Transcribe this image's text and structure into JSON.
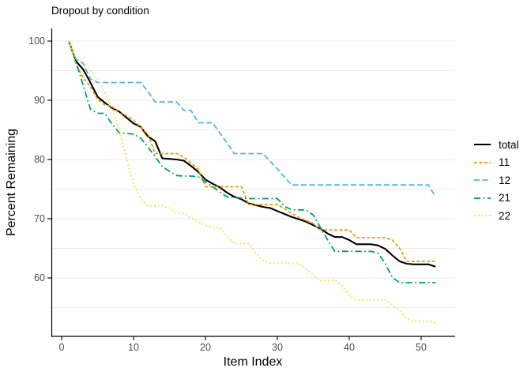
{
  "title": "Dropout by condition",
  "axes": {
    "x": {
      "label": "Item Index",
      "ticks": [
        0,
        10,
        20,
        30,
        40,
        50
      ]
    },
    "y": {
      "label": "Percent Remaining",
      "ticks": [
        60,
        70,
        80,
        90,
        100
      ]
    }
  },
  "colors": {
    "background": "#ffffff",
    "grid": "#ebebeb",
    "axis_line": "#000000",
    "tick_label": "#4d4d4d",
    "series_total": "#000000",
    "series_11": "#E69F00",
    "series_12": "#56B4E9",
    "series_21": "#009E73",
    "series_22": "#F0E442"
  },
  "chart_data": {
    "type": "line",
    "title": "Dropout by condition",
    "xlabel": "Item Index",
    "ylabel": "Percent Remaining",
    "xlim": [
      -1.4,
      54.7
    ],
    "ylim": [
      50.1,
      102.5
    ],
    "grid": "horizontal-only",
    "gridlines_y": [
      55,
      60,
      65,
      70,
      75,
      80,
      85,
      90,
      95,
      100
    ],
    "legend_position": "right",
    "x_start": 1,
    "x_end": 52,
    "series": [
      {
        "name": "total",
        "color": "#000000",
        "dash": "",
        "width": 2.1,
        "values": [
          100,
          96.6,
          95.2,
          93.0,
          90.6,
          89.6,
          88.7,
          88.1,
          87.1,
          86.1,
          85.5,
          83.9,
          83.1,
          80.2,
          80.1,
          80.0,
          79.8,
          78.9,
          77.9,
          76.6,
          75.9,
          75.3,
          74.4,
          73.7,
          73.3,
          72.6,
          72.3,
          72.0,
          71.8,
          71.3,
          70.8,
          70.3,
          69.9,
          69.5,
          68.9,
          68.3,
          67.5,
          66.9,
          66.9,
          66.4,
          65.7,
          65.7,
          65.7,
          65.5,
          64.9,
          63.8,
          62.8,
          62.4,
          62.3,
          62.3,
          62.3,
          61.9
        ]
      },
      {
        "name": "11",
        "color": "#E69F00",
        "dash": "4 2.5",
        "width": 1.8,
        "values": [
          100,
          96.1,
          93.8,
          92.3,
          90.2,
          89.2,
          89.0,
          87.8,
          87.4,
          86.7,
          85.4,
          84.3,
          81.0,
          81.0,
          81.0,
          81.0,
          80.4,
          79.4,
          78.4,
          75.4,
          75.4,
          75.4,
          75.4,
          75.4,
          75.4,
          72.4,
          72.4,
          72.4,
          72.4,
          72.4,
          71.7,
          70.9,
          70.2,
          69.7,
          69.2,
          68.1,
          68.1,
          68.1,
          68.1,
          68.1,
          66.8,
          66.8,
          66.8,
          66.8,
          66.8,
          66.4,
          65.0,
          62.8,
          62.8,
          62.8,
          62.8,
          62.8
        ]
      },
      {
        "name": "12",
        "color": "#56B4E9",
        "dash": "7 3.5",
        "width": 1.8,
        "values": [
          100,
          97.0,
          96.2,
          93.6,
          93.0,
          93.0,
          93.0,
          93.0,
          93.0,
          93.0,
          93.0,
          91.5,
          89.7,
          89.7,
          89.7,
          89.7,
          88.3,
          88.3,
          86.2,
          86.2,
          86.2,
          84.5,
          82.8,
          81.0,
          81.0,
          81.0,
          81.0,
          81.0,
          79.7,
          78.4,
          77.0,
          75.7,
          75.7,
          75.7,
          75.7,
          75.7,
          75.7,
          75.7,
          75.7,
          75.7,
          75.7,
          75.7,
          75.7,
          75.7,
          75.7,
          75.7,
          75.7,
          75.7,
          75.7,
          75.7,
          75.7,
          73.7
        ]
      },
      {
        "name": "21",
        "color": "#009E73",
        "dash": "8 3.5 1.8 3.5",
        "width": 1.8,
        "values": [
          100,
          96.5,
          92.5,
          88.5,
          87.8,
          87.8,
          86.0,
          84.5,
          84.4,
          84.3,
          83.6,
          82.1,
          80.5,
          78.8,
          78.0,
          77.3,
          77.2,
          77.2,
          77.1,
          76.2,
          75.4,
          74.5,
          73.7,
          73.6,
          73.5,
          73.4,
          73.4,
          73.4,
          73.4,
          73.4,
          72.1,
          71.5,
          71.5,
          71.5,
          70.6,
          68.5,
          66.4,
          64.5,
          64.5,
          64.5,
          64.5,
          64.5,
          64.5,
          64.2,
          62.4,
          60.1,
          59.2,
          59.2,
          59.2,
          59.2,
          59.2,
          59.2
        ]
      },
      {
        "name": "22",
        "color": "#F0E442",
        "dash": "1.8 3",
        "width": 1.9,
        "values": [
          100,
          97.0,
          96.5,
          95.0,
          93.6,
          91.4,
          88.8,
          84.9,
          80.3,
          75.8,
          73.4,
          72.2,
          72.2,
          72.2,
          71.8,
          70.9,
          70.9,
          70.1,
          69.5,
          68.9,
          68.5,
          68.5,
          67.0,
          65.8,
          65.8,
          65.8,
          64.2,
          63.0,
          62.5,
          62.5,
          62.5,
          62.5,
          62.5,
          61.4,
          60.5,
          59.6,
          59.6,
          59.6,
          58.7,
          57.1,
          56.3,
          56.3,
          56.3,
          56.3,
          56.3,
          55.4,
          54.5,
          53.2,
          52.7,
          52.7,
          52.7,
          52.4
        ]
      }
    ]
  },
  "legend": {
    "entries": [
      "total",
      "11",
      "12",
      "21",
      "22"
    ]
  }
}
